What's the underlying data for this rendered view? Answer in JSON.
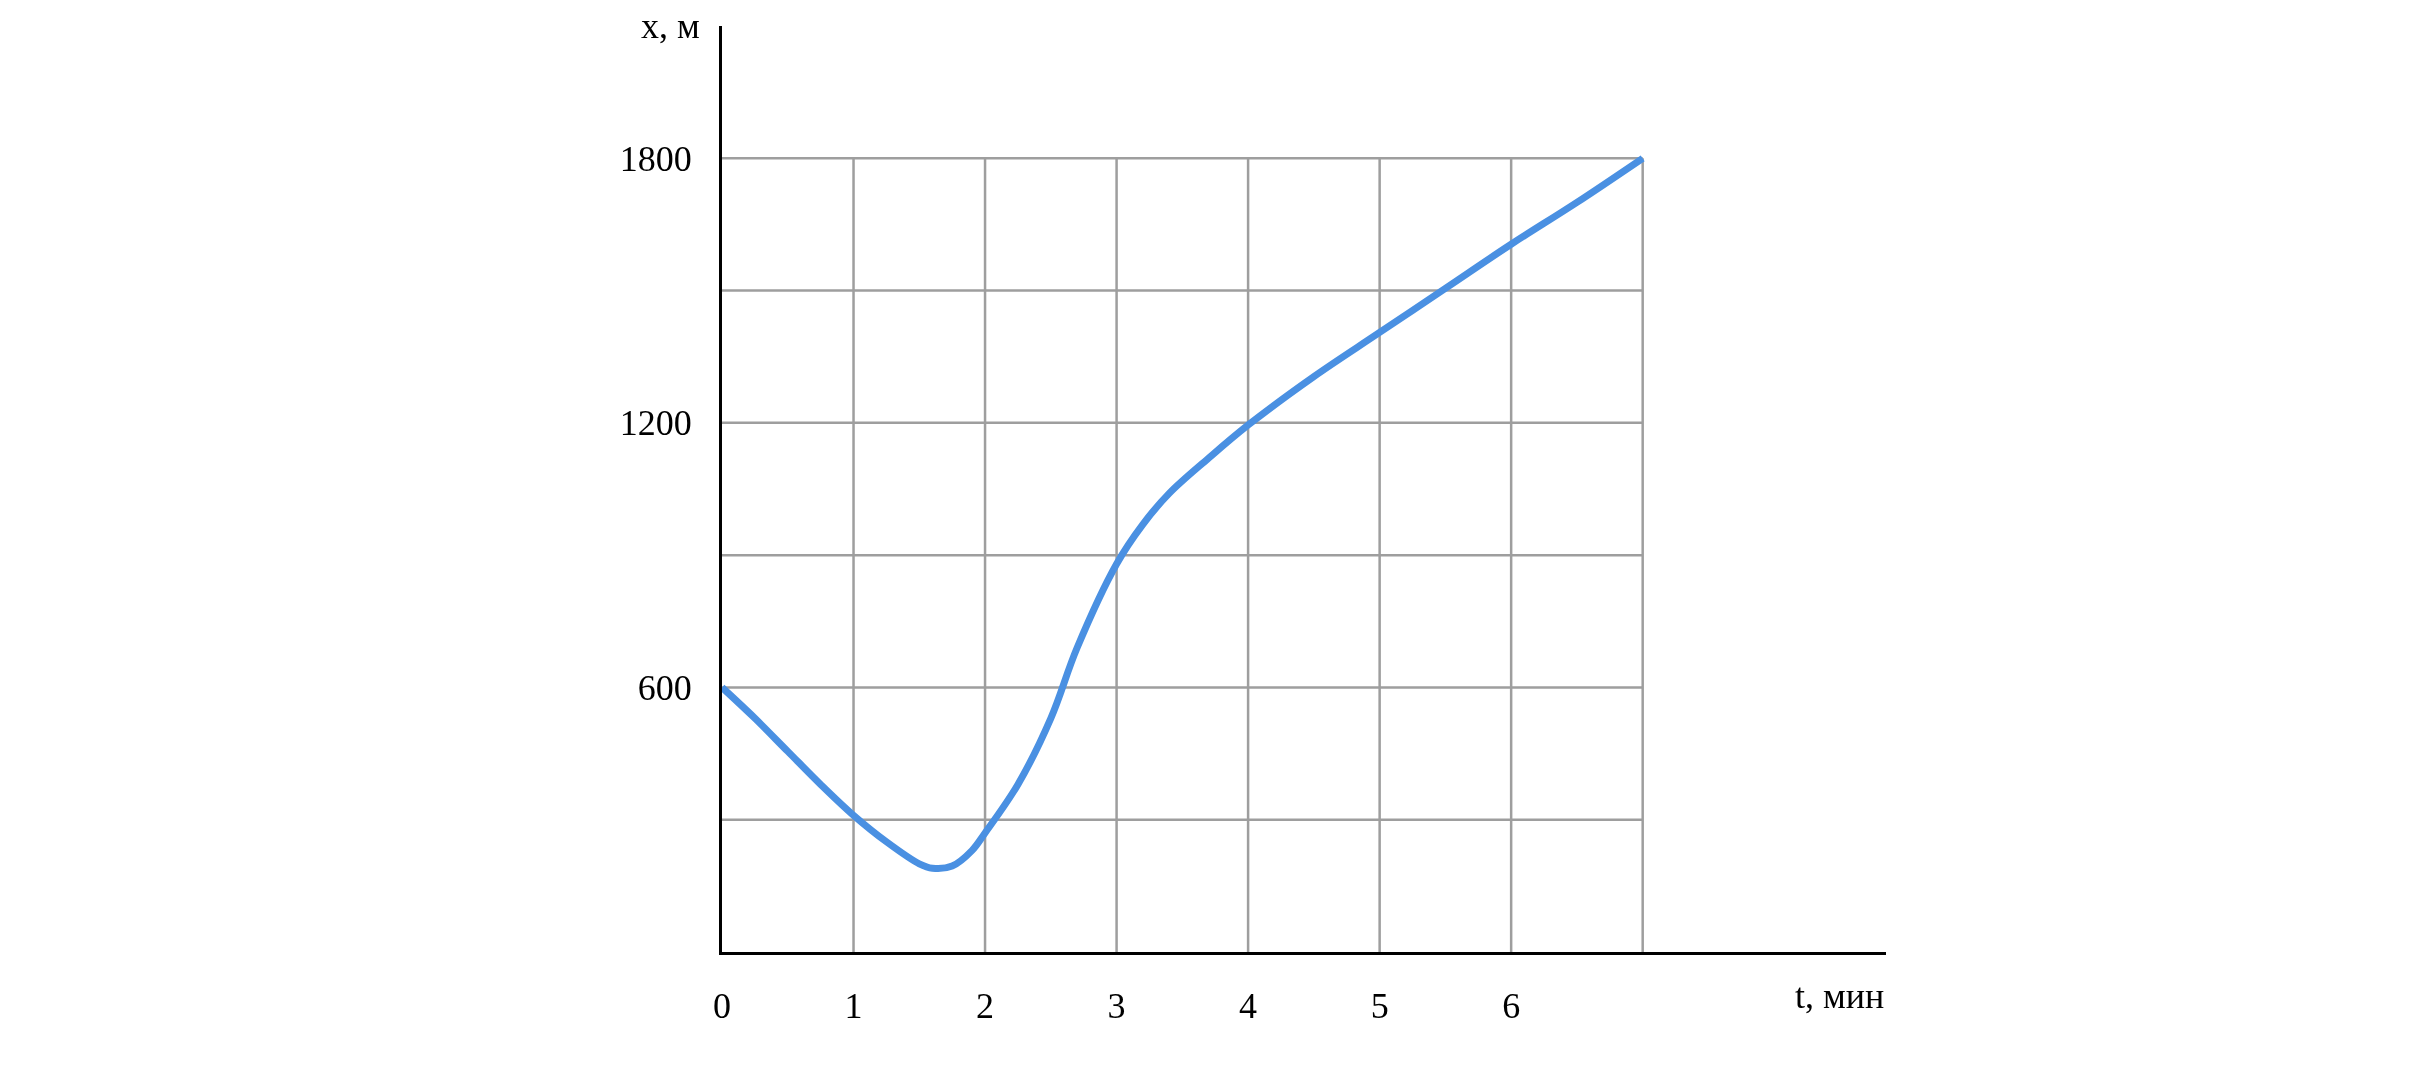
{
  "chart_data": {
    "type": "line",
    "xlabel": "t, мин",
    "ylabel": "x, м",
    "x": [
      0,
      0.25,
      0.5,
      0.75,
      1,
      1.25,
      1.5,
      1.6,
      1.75,
      1.9,
      2,
      2.25,
      2.5,
      2.7,
      3,
      3.2,
      3.4,
      3.7,
      4,
      4.5,
      5,
      5.5,
      6,
      6.5,
      7
    ],
    "series": [
      {
        "color": "#4a90e2",
        "values": [
          600,
          530,
          455,
          380,
          310,
          250,
          200,
          190,
          195,
          230,
          270,
          380,
          530,
          690,
          880,
          970,
          1040,
          1120,
          1195,
          1305,
          1405,
          1505,
          1605,
          1700,
          1800
        ]
      }
    ],
    "xlim": [
      0,
      8.85
    ],
    "ylim": [
      0,
      2100
    ],
    "xticks": [
      0,
      1,
      2,
      3,
      4,
      5,
      6,
      {
        "value": 7,
        "label": null
      }
    ],
    "yticks": [
      {
        "value": 300,
        "label": null
      },
      600,
      {
        "value": 900,
        "label": null
      },
      1200,
      {
        "value": 1500,
        "label": null
      },
      1800
    ],
    "grid": true,
    "marker": "none",
    "line_style": "solid"
  }
}
